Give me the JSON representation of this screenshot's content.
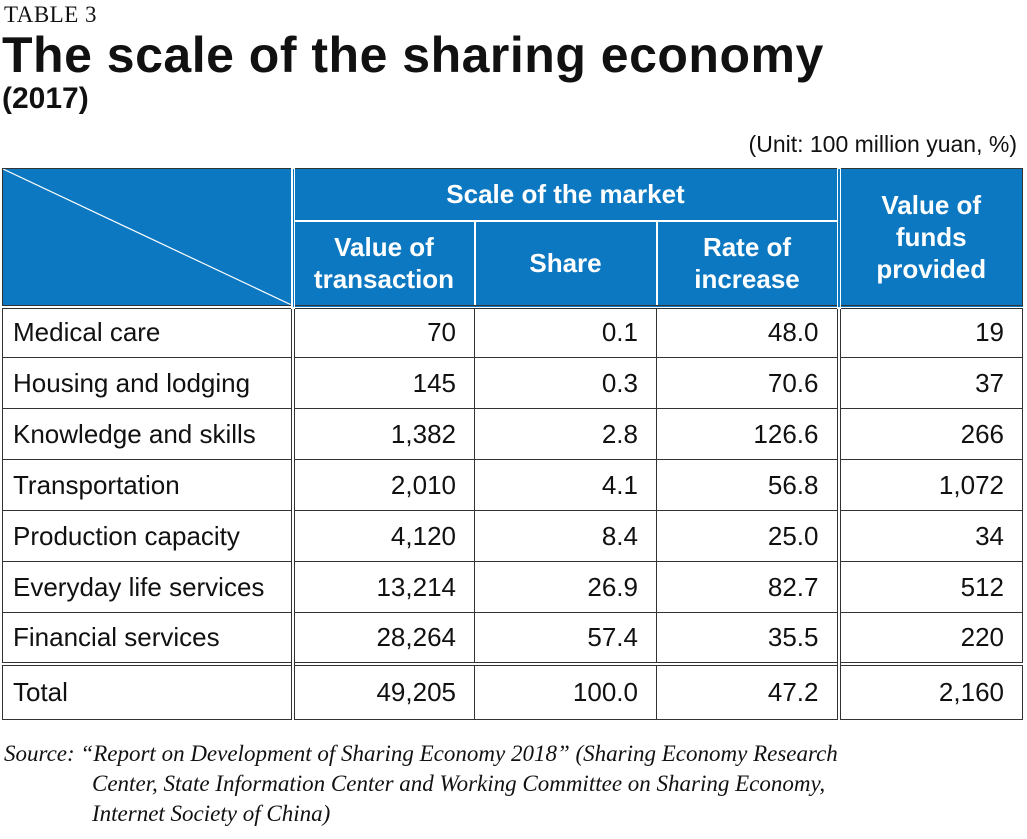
{
  "header": {
    "table_label": "TABLE 3",
    "title": "The scale of the sharing economy",
    "subtitle": "(2017)",
    "unit": "(Unit: 100 million yuan, %)"
  },
  "columns": {
    "group_label": "Scale of the market",
    "value_of_transaction": "Value of transaction",
    "share": "Share",
    "rate_of_increase": "Rate of increase",
    "value_of_funds": "Value of funds provided"
  },
  "rows": [
    {
      "category": "Medical care",
      "transaction": "70",
      "share": "0.1",
      "rate": "48.0",
      "funds": "19"
    },
    {
      "category": "Housing and lodging",
      "transaction": "145",
      "share": "0.3",
      "rate": "70.6",
      "funds": "37"
    },
    {
      "category": "Knowledge and skills",
      "transaction": "1,382",
      "share": "2.8",
      "rate": "126.6",
      "funds": "266"
    },
    {
      "category": "Transportation",
      "transaction": "2,010",
      "share": "4.1",
      "rate": "56.8",
      "funds": "1,072"
    },
    {
      "category": "Production capacity",
      "transaction": "4,120",
      "share": "8.4",
      "rate": "25.0",
      "funds": "34"
    },
    {
      "category": "Everyday life services",
      "transaction": "13,214",
      "share": "26.9",
      "rate": "82.7",
      "funds": "512"
    },
    {
      "category": "Financial services",
      "transaction": "28,264",
      "share": "57.4",
      "rate": "35.5",
      "funds": "220"
    }
  ],
  "total": {
    "category": "Total",
    "transaction": "49,205",
    "share": "100.0",
    "rate": "47.2",
    "funds": "2,160"
  },
  "source": {
    "line1": "Source: “Report on Development of Sharing Economy 2018” (Sharing Economy Research",
    "line2": "Center, State Information Center and Working Committee on Sharing Economy,",
    "line3": "Internet Society of China)"
  },
  "colors": {
    "header_bg": "#0b78c1",
    "header_text": "#ffffff"
  }
}
